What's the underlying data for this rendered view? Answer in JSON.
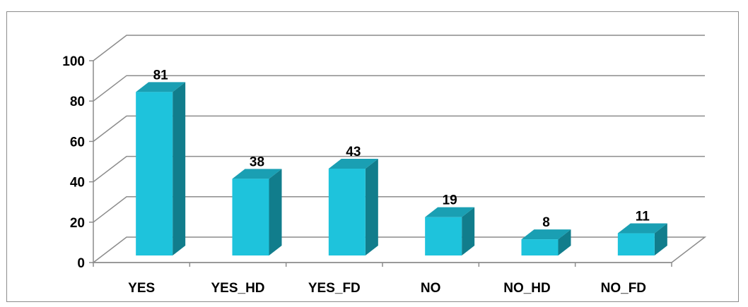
{
  "chart_data": {
    "type": "bar",
    "style": "3d-column",
    "categories": [
      "YES",
      "YES_HD",
      "YES_FD",
      "NO",
      "NO_HD",
      "NO_FD"
    ],
    "values": [
      81,
      38,
      43,
      19,
      8,
      11
    ],
    "ylim": [
      0,
      100
    ],
    "yticks": [
      0,
      20,
      40,
      60,
      80,
      100
    ],
    "grid": true,
    "legend": "none",
    "data_labels": true,
    "colors": {
      "bar_front": "#1ec3dc",
      "bar_side": "#117d8c",
      "bar_top": "#1a9fb3",
      "gridline": "#8c8c8c",
      "frame": "#8c8c8c"
    }
  }
}
